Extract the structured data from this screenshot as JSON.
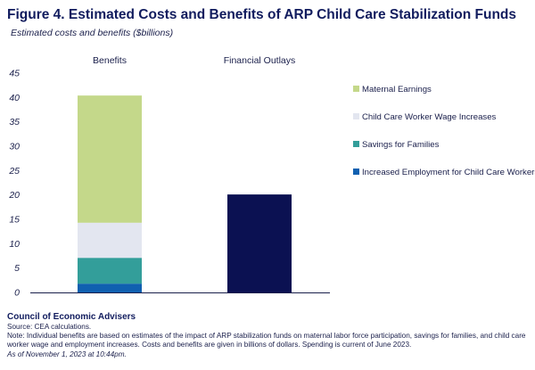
{
  "title": "Figure 4. Estimated Costs and Benefits of ARP Child Care Stabilization Funds",
  "subtitle": "Estimated costs and benefits ($billions)",
  "chart_data": {
    "type": "bar",
    "stacked": true,
    "categories": [
      "Benefits",
      "Financial Outlays"
    ],
    "ylim": [
      0,
      45
    ],
    "yticks": [
      0,
      5,
      10,
      15,
      20,
      25,
      30,
      35,
      40,
      45
    ],
    "grid": false,
    "legend_position": "right",
    "series": [
      {
        "name": "Increased Employment for Child Care Workers",
        "color": "#1060b0",
        "values": [
          1.8,
          0
        ]
      },
      {
        "name": "Savings for Families",
        "color": "#339e9a",
        "values": [
          5.3,
          0
        ]
      },
      {
        "name": "Child Care Worker Wage Increases",
        "color": "#e3e6f0",
        "values": [
          7.2,
          0
        ]
      },
      {
        "name": "Maternal Earnings",
        "color": "#c4d88a",
        "values": [
          26.1,
          0
        ]
      },
      {
        "name": "",
        "color": "#0b1152",
        "values": [
          0,
          20.1
        ]
      }
    ],
    "legend_order": [
      3,
      2,
      1,
      0
    ]
  },
  "footer": {
    "org": "Council of Economic Advisers",
    "source": "Source: CEA calculations.",
    "note": "Note: Individual benefits are based on estimates of the impact of ARP stabilization funds on maternal labor force participation, savings for families, and child care worker wage and employment increases. Costs and benefits are given in billions of dollars. Spending is current of June 2023.",
    "as_of": "As of November 1, 2023 at 10:44pm."
  }
}
